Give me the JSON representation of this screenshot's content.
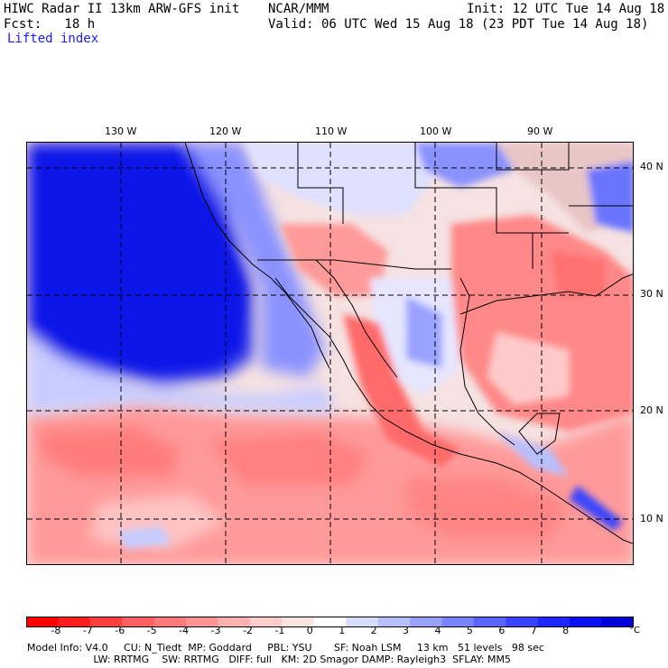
{
  "header": {
    "line1_left": "HIWC Radar II 13km ARW-GFS init",
    "line1_center": "NCAR/MMM",
    "line1_right": "Init: 12 UTC Tue 14 Aug 18",
    "line2_left": "Fcst:   18 h",
    "line2_right": "Valid: 06 UTC Wed 15 Aug 18 (23 PDT Tue 14 Aug 18)",
    "field": "Lifted index"
  },
  "map": {
    "lon_labels": [
      "130 W",
      "120 W",
      "110 W",
      "100 W",
      "90 W"
    ],
    "lat_labels": [
      "40 N",
      "30 N",
      "20 N",
      "10 N"
    ]
  },
  "colorbar": {
    "ticks": [
      "-8",
      "-7",
      "-6",
      "-5",
      "-4",
      "-3",
      "-2",
      "-1",
      "0",
      "1",
      "2",
      "3",
      "4",
      "5",
      "6",
      "7",
      "8"
    ],
    "unit": "°C",
    "colors": [
      "#ff0000",
      "#ff2020",
      "#ff4040",
      "#ff6060",
      "#ff7a7a",
      "#ff9494",
      "#ffb0b0",
      "#ffcccc",
      "#ffe4e4",
      "#ffffff",
      "#d8dcff",
      "#b8bfff",
      "#9aa2ff",
      "#7a84ff",
      "#5a64ff",
      "#3a44ff",
      "#1e28ff",
      "#0a10f0",
      "#0000d8"
    ]
  },
  "footer": {
    "line1": "Model Info: V4.0     CU: N_Tiedt  MP: Goddard     PBL: YSU       SF: Noah LSM     13 km   51 levels   98 sec",
    "line2": "                     LW: RRTMG    SW: RRTMG   DIFF: full   KM: 2D Smagor DAMP: Rayleigh3  SFLAY: MM5"
  }
}
